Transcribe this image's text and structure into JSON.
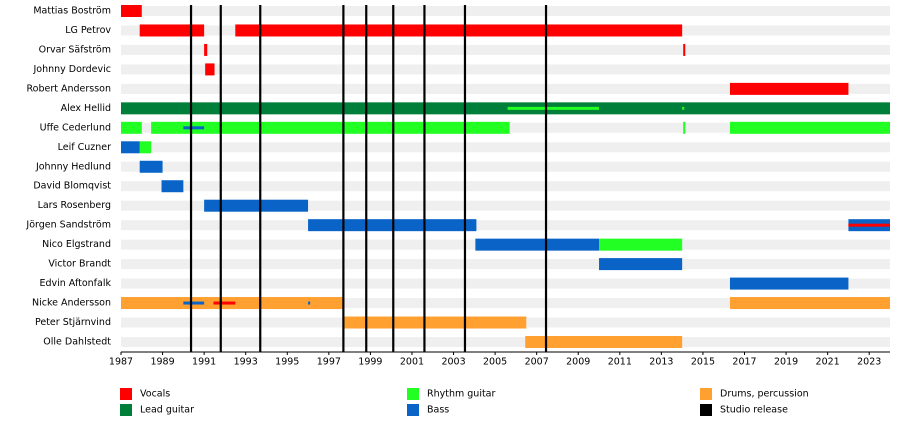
{
  "chart_data": {
    "type": "timeline",
    "categories": [
      "Mattias Boström",
      "LG Petrov",
      "Orvar Säfström",
      "Johnny Dordevic",
      "Robert Andersson",
      "Alex Hellid",
      "Uffe Cederlund",
      "Leif Cuzner",
      "Johnny Hedlund",
      "David Blomqvist",
      "Lars Rosenberg",
      "Jörgen Sandström",
      "Nico Elgstrand",
      "Victor Brandt",
      "Edvin Aftonfalk",
      "Nicke Andersson",
      "Peter Stjärnvind",
      "Olle Dahlstedt"
    ],
    "xlim": [
      1987,
      2024
    ],
    "xticks": [
      1987,
      1989,
      1991,
      1993,
      1995,
      1997,
      1999,
      2001,
      2003,
      2005,
      2007,
      2009,
      2011,
      2013,
      2015,
      2017,
      2019,
      2021,
      2023
    ],
    "series": [
      {
        "name": "Vocals",
        "color": "#ff0000",
        "values": [
          [
            [
              1987,
              1988
            ]
          ],
          [
            [
              1987.9,
              1991
            ],
            [
              1992.5,
              2014
            ]
          ],
          [
            [
              1991,
              1991.15
            ],
            [
              2014.05,
              2014.15
            ]
          ],
          [
            [
              1991.05,
              1991.5
            ]
          ],
          [
            [
              2016.3,
              2022
            ]
          ],
          [],
          [],
          [],
          [],
          [],
          [],
          [],
          [],
          [],
          [],
          [],
          [],
          []
        ],
        "minor": [
          [],
          [],
          [],
          [],
          [],
          [],
          [],
          [],
          [],
          [],
          [],
          [
            [
              2022,
              2024
            ]
          ],
          [],
          [],
          [],
          [
            [
              1991.45,
              1992.5
            ]
          ],
          [],
          []
        ]
      },
      {
        "name": "Lead guitar",
        "color": "#007f3a",
        "values": [
          [],
          [],
          [],
          [],
          [],
          [
            [
              1987,
              2024
            ]
          ],
          [],
          [],
          [],
          [],
          [],
          [],
          [],
          [],
          [],
          [],
          [],
          []
        ]
      },
      {
        "name": "Rhythm guitar",
        "color": "#22ff22",
        "values": [
          [],
          [],
          [],
          [],
          [],
          [],
          [
            [
              1987,
              1988
            ],
            [
              1988.45,
              2005.7
            ],
            [
              2014.05,
              2014.15
            ],
            [
              2016.3,
              2024
            ]
          ],
          [
            [
              1987.9,
              1988.45
            ]
          ],
          [],
          [],
          [],
          [],
          [
            [
              2010,
              2014
            ]
          ],
          [],
          [],
          [],
          [],
          []
        ],
        "minor": [
          [],
          [],
          [],
          [],
          [],
          [
            [
              2005.6,
              2010
            ],
            [
              2014,
              2014.1
            ]
          ],
          [],
          [],
          [],
          [],
          [],
          [],
          [],
          [],
          [],
          [],
          [],
          []
        ]
      },
      {
        "name": "Bass",
        "color": "#0a64c8",
        "values": [
          [],
          [],
          [],
          [],
          [],
          [],
          [],
          [
            [
              1987,
              1987.9
            ]
          ],
          [
            [
              1987.9,
              1989
            ]
          ],
          [
            [
              1988.95,
              1990
            ]
          ],
          [
            [
              1991,
              1996
            ]
          ],
          [
            [
              1996,
              2004.1
            ],
            [
              2022,
              2024
            ]
          ],
          [
            [
              2004.05,
              2010
            ]
          ],
          [
            [
              2010,
              2014
            ]
          ],
          [
            [
              2016.3,
              2022
            ]
          ],
          [],
          [],
          []
        ],
        "minor": [
          [],
          [],
          [],
          [],
          [],
          [],
          [
            [
              1990,
              1991
            ]
          ],
          [],
          [],
          [],
          [],
          [],
          [],
          [],
          [],
          [
            [
              1990,
              1991
            ],
            [
              1996,
              1996.1
            ]
          ],
          [],
          []
        ]
      },
      {
        "name": "Drums, percussion",
        "color": "#ffa030",
        "values": [
          [],
          [],
          [],
          [],
          [],
          [],
          [],
          [],
          [],
          [],
          [],
          [],
          [],
          [],
          [],
          [
            [
              1987,
              1997.75
            ],
            [
              2016.3,
              2024
            ]
          ],
          [
            [
              1997.7,
              2006.5
            ]
          ],
          [
            [
              2006.45,
              2014
            ]
          ]
        ]
      },
      {
        "name": "Studio release",
        "color": "#000000",
        "lines": [
          1990.37,
          1991.8,
          1993.7,
          1997.7,
          1998.8,
          2000.1,
          2001.6,
          2003.55,
          2007.45
        ]
      }
    ]
  }
}
